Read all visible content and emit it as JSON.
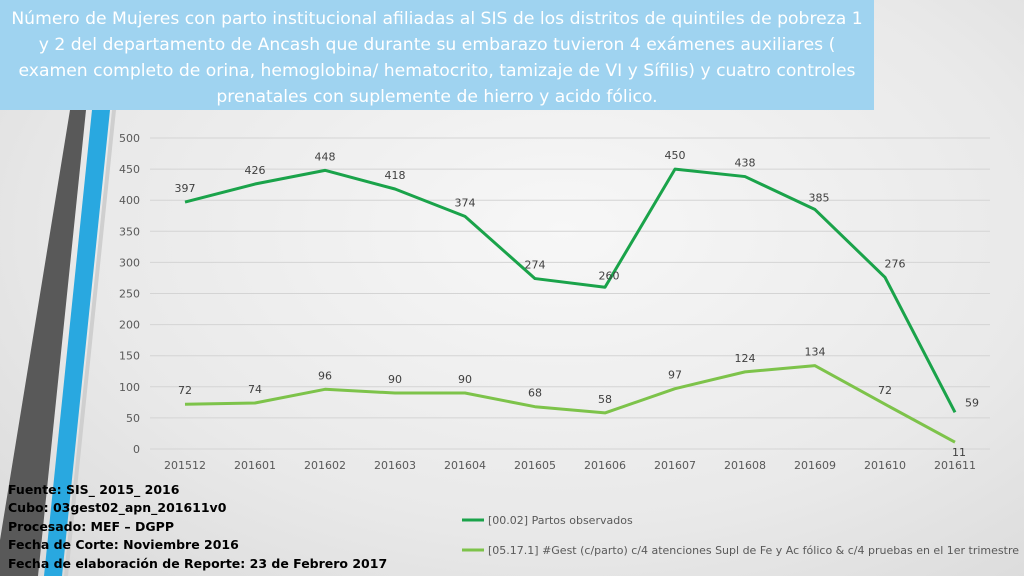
{
  "title": "Número de Mujeres con parto institucional afiliadas al SIS de los distritos de quintiles de pobreza 1 y 2 del departamento de Ancash que durante su embarazo tuvieron 4 exámenes auxiliares ( examen completo de orina, hemoglobina/ hematocrito, tamizaje de VI y Sífilis) y cuatro controles prenatales con suplemente de hierro y acido fólico.",
  "footer": {
    "line1": "Fuente: SIS_ 2015_ 2016",
    "line2": "Cubo: 03gest02_apn_201611v0",
    "line3": "Procesado: MEF – DGPP",
    "line4": "Fecha de Corte: Noviembre 2016",
    "line5": "Fecha de elaboración de Reporte: 23 de Febrero 2017"
  },
  "colors": {
    "series1": "#1aa34a",
    "series2": "#7dc34a",
    "title_bg": "#9fd3f0",
    "deco_blue": "#29a8e0",
    "deco_gray": "#595959"
  },
  "chart_data": {
    "type": "line",
    "title": "",
    "xlabel": "",
    "ylabel": "",
    "categories": [
      "201512",
      "201601",
      "201602",
      "201603",
      "201604",
      "201605",
      "201606",
      "201607",
      "201608",
      "201609",
      "201610",
      "201611"
    ],
    "ylim": [
      0,
      500
    ],
    "yticks": [
      0,
      50,
      100,
      150,
      200,
      250,
      300,
      350,
      400,
      450,
      500
    ],
    "grid": true,
    "legend_position": "bottom",
    "series": [
      {
        "name": "[00.02] Partos observados",
        "values": [
          397,
          426,
          448,
          418,
          374,
          274,
          260,
          450,
          438,
          385,
          276,
          59
        ]
      },
      {
        "name": "[05.17.1] #Gest (c/parto) c/4 atenciones Supl de Fe y Ac fólico & c/4 pruebas en el 1er trimestre",
        "values": [
          72,
          74,
          96,
          90,
          90,
          68,
          58,
          97,
          124,
          134,
          72,
          11
        ]
      }
    ]
  }
}
